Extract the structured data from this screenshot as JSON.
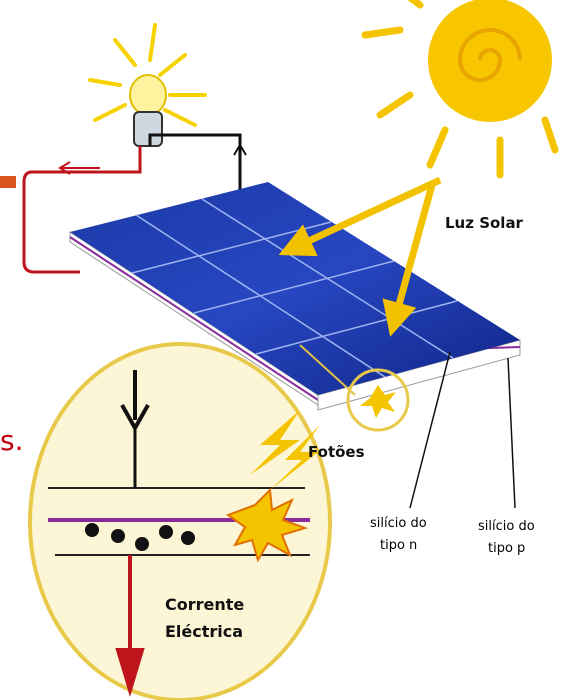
{
  "fragment": "s.",
  "labels": {
    "sunlight": "Luz Solar",
    "photons": "Fotões",
    "n_type": [
      "silício do",
      "tipo n"
    ],
    "p_type": [
      "silício do",
      "tipo p"
    ],
    "current": [
      "Corrente",
      "Eléctrica"
    ]
  }
}
